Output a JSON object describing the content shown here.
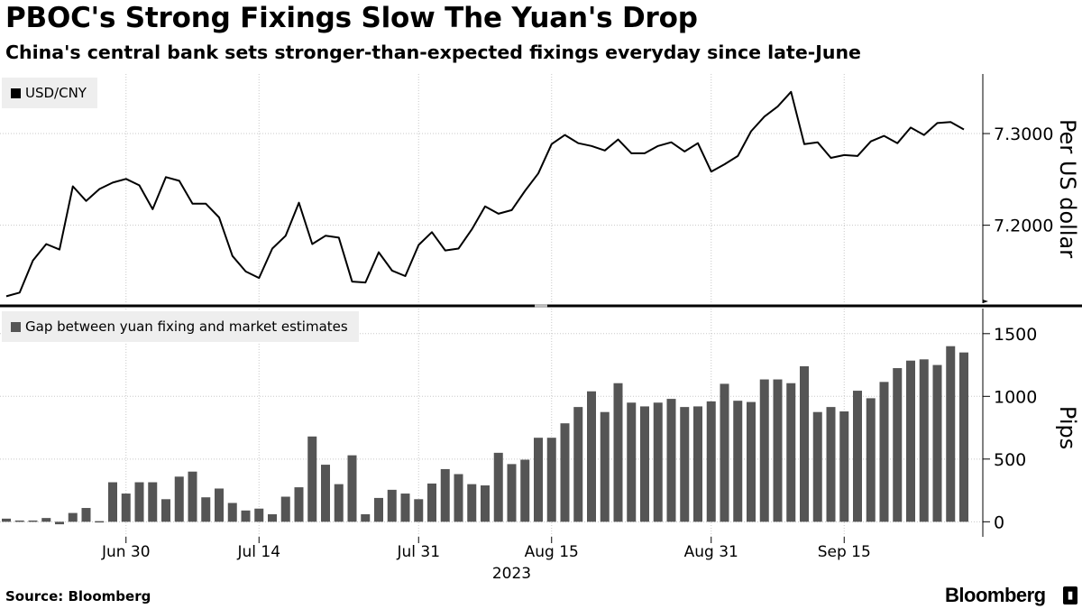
{
  "title": "PBOC's Strong Fixings Slow The Yuan's Drop",
  "subtitle": "China's central bank sets stronger-than-expected fixings everyday since late-June",
  "source": "Source:  Bloomberg",
  "brand": "Bloomberg",
  "colors": {
    "line": "#000000",
    "bars": "#555555",
    "grid": "#c8c8c8",
    "legend_bg": "#eeeeee"
  },
  "chart_data": [
    {
      "type": "line",
      "legend": "USD/CNY",
      "ylabel": "Per US dollar",
      "ylim": [
        7.115,
        7.365
      ],
      "yticks": [
        7.2,
        7.3
      ],
      "ytick_labels": [
        "7.2000",
        "7.3000"
      ],
      "grid": true,
      "legend_position": "top-left",
      "values": [
        7.1225,
        7.1265,
        7.1615,
        7.1795,
        7.1735,
        7.2425,
        7.2265,
        7.2395,
        7.2465,
        7.2505,
        7.2435,
        7.2175,
        7.2525,
        7.2485,
        7.2235,
        7.2235,
        7.2085,
        7.1665,
        7.1495,
        7.1425,
        7.1745,
        7.1885,
        7.2245,
        7.1795,
        7.1885,
        7.1865,
        7.1385,
        7.1375,
        7.1705,
        7.1505,
        7.1445,
        7.1785,
        7.1925,
        7.1725,
        7.1745,
        7.1955,
        7.2205,
        7.2125,
        7.2165,
        7.2375,
        7.2565,
        7.2885,
        7.2985,
        7.2895,
        7.2865,
        7.2815,
        7.2935,
        7.2785,
        7.2785,
        7.2865,
        7.2905,
        7.2805,
        7.2895,
        7.2585,
        7.2665,
        7.2755,
        7.3025,
        7.3185,
        7.3295,
        7.3455,
        7.2885,
        7.2905,
        7.2735,
        7.2765,
        7.2755,
        7.2915,
        7.2975,
        7.2895,
        7.3065,
        7.2985,
        7.3115,
        7.3125,
        7.3045
      ]
    },
    {
      "type": "bar",
      "legend": "Gap between yuan fixing and market estimates",
      "ylabel": "Pips",
      "ylim": [
        -120,
        1700
      ],
      "yticks": [
        0,
        500,
        1000,
        1500
      ],
      "ytick_labels": [
        "0",
        "500",
        "1000",
        "1500"
      ],
      "grid": true,
      "legend_position": "top-left",
      "x_axis": {
        "ticks": [
          "Jun 30",
          "Jul 14",
          "Jul 31",
          "Aug 15",
          "Aug 31",
          "Sep 15"
        ],
        "tick_bar_index": [
          9,
          19,
          31,
          41,
          53,
          63
        ],
        "year_label": "2023",
        "year_tick_index": 38
      },
      "values": [
        25,
        10,
        10,
        30,
        -20,
        70,
        110,
        5,
        315,
        225,
        315,
        315,
        180,
        360,
        400,
        195,
        265,
        150,
        90,
        105,
        60,
        200,
        275,
        680,
        455,
        300,
        530,
        60,
        190,
        255,
        225,
        180,
        305,
        420,
        380,
        300,
        290,
        550,
        460,
        495,
        670,
        670,
        785,
        915,
        1040,
        875,
        1105,
        950,
        920,
        950,
        980,
        915,
        920,
        960,
        1100,
        965,
        955,
        1135,
        1135,
        1105,
        1240,
        875,
        915,
        880,
        1045,
        985,
        1115,
        1225,
        1285,
        1295,
        1250,
        1400,
        1350
      ]
    }
  ]
}
